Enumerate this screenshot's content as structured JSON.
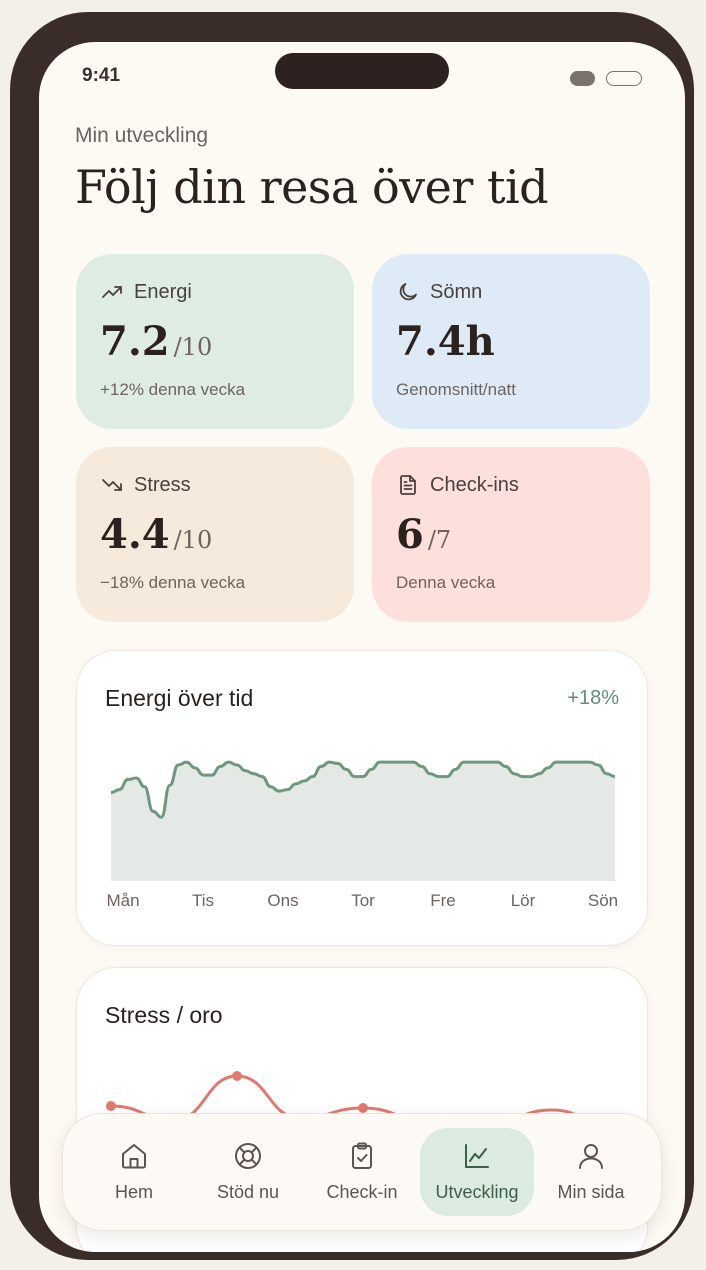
{
  "status_bar": {
    "time": "9:41"
  },
  "header": {
    "eyebrow": "Min utveckling",
    "title": "Följ din resa över tid"
  },
  "stats": [
    {
      "label": "Energi",
      "value": "7.2",
      "unit": "/10",
      "sub": "+12% denna vecka",
      "icon": "trending-up-icon",
      "color": "#dfece3"
    },
    {
      "label": "Sömn",
      "value": "7.4h",
      "unit": "",
      "sub": "Genomsnitt/natt",
      "icon": "moon-icon",
      "color": "#deebf7"
    },
    {
      "label": "Stress",
      "value": "4.4",
      "unit": "/10",
      "sub": "−18% denna vecka",
      "icon": "trending-down-icon",
      "color": "#f5eadc"
    },
    {
      "label": "Check-ins",
      "value": "6",
      "unit": "/7",
      "sub": "Denna vecka",
      "icon": "file-text-icon",
      "color": "#fde0dc"
    }
  ],
  "energy_panel": {
    "title": "Energi över tid",
    "delta": "+18%"
  },
  "stress_panel": {
    "title": "Stress / oro"
  },
  "chart_data": [
    {
      "type": "area",
      "title": "Energi över tid",
      "categories": [
        "Mån",
        "Tis",
        "Ons",
        "Tor",
        "Fre",
        "Lör",
        "Sön"
      ],
      "x": [
        0,
        0.1,
        0.2,
        0.3,
        0.4,
        0.5,
        0.6,
        0.7,
        0.8,
        0.9,
        1.0,
        1.1,
        1.2,
        1.3,
        1.4,
        1.5,
        1.6,
        1.7,
        1.8,
        1.9,
        2.0,
        2.1,
        2.2,
        2.3,
        2.4,
        2.5,
        2.6,
        2.7,
        2.8,
        2.9,
        3.0,
        3.1,
        3.2,
        3.3,
        3.4,
        3.5,
        3.6,
        3.7,
        3.8,
        3.9,
        4.0,
        4.1,
        4.2,
        4.3,
        4.4,
        4.5,
        4.6,
        4.7,
        4.8,
        4.9,
        5.0,
        5.1,
        5.2,
        5.3,
        5.4,
        5.5,
        5.6,
        5.7,
        5.8,
        5.9,
        6.0
      ],
      "values": [
        0.61,
        0.63,
        0.7,
        0.71,
        0.65,
        0.48,
        0.44,
        0.66,
        0.8,
        0.82,
        0.78,
        0.73,
        0.73,
        0.79,
        0.82,
        0.8,
        0.76,
        0.74,
        0.72,
        0.65,
        0.62,
        0.63,
        0.67,
        0.69,
        0.72,
        0.79,
        0.82,
        0.81,
        0.77,
        0.72,
        0.72,
        0.77,
        0.82,
        0.82,
        0.82,
        0.82,
        0.82,
        0.79,
        0.74,
        0.72,
        0.72,
        0.77,
        0.82,
        0.82,
        0.82,
        0.82,
        0.82,
        0.79,
        0.74,
        0.72,
        0.72,
        0.74,
        0.78,
        0.82,
        0.82,
        0.82,
        0.82,
        0.82,
        0.8,
        0.74,
        0.72
      ],
      "color": "#6e977d",
      "fill": "#e5e9e6"
    },
    {
      "type": "line",
      "title": "Stress / oro",
      "values": [
        0.62,
        0.48,
        0.92,
        0.5,
        0.6,
        0.48,
        0.45,
        0.58,
        0.4
      ],
      "color": "#de7a72"
    }
  ],
  "nav": {
    "items": [
      {
        "label": "Hem",
        "icon": "home-icon",
        "active": false
      },
      {
        "label": "Stöd nu",
        "icon": "lifebuoy-icon",
        "active": false
      },
      {
        "label": "Check-in",
        "icon": "clipboard-check-icon",
        "active": false
      },
      {
        "label": "Utveckling",
        "icon": "line-chart-icon",
        "active": true
      },
      {
        "label": "Min sida",
        "icon": "user-icon",
        "active": false
      }
    ]
  }
}
